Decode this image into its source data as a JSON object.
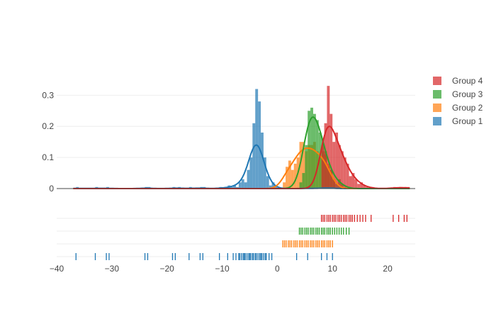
{
  "chart_data": {
    "type": "distplot",
    "title": "",
    "xlabel": "",
    "ylabel": "",
    "xlim": [
      -40,
      25
    ],
    "ylim": [
      0,
      0.36
    ],
    "x_ticks": [
      "−40",
      "−30",
      "−20",
      "−10",
      "0",
      "10",
      "20"
    ],
    "x_tick_values": [
      -40,
      -30,
      -20,
      -10,
      0,
      10,
      20
    ],
    "y_ticks": [
      "0",
      "0.1",
      "0.2",
      "0.3"
    ],
    "y_tick_values": [
      0,
      0.1,
      0.2,
      0.3
    ],
    "grid": true,
    "legend_position": "top-right",
    "series": [
      {
        "name": "Group 1",
        "color": "#1f77b4",
        "kde_peak_x": -4,
        "kde_peak_y": 0.14,
        "histogram": [
          {
            "x": -36.5,
            "y": 0.005
          },
          {
            "x": -33,
            "y": 0.005
          },
          {
            "x": -31,
            "y": 0.005
          },
          {
            "x": -24,
            "y": 0.005
          },
          {
            "x": -23.5,
            "y": 0.005
          },
          {
            "x": -19,
            "y": 0.005
          },
          {
            "x": -18,
            "y": 0.005
          },
          {
            "x": -16,
            "y": 0.005
          },
          {
            "x": -14,
            "y": 0.005
          },
          {
            "x": -13.5,
            "y": 0.005
          },
          {
            "x": -10.5,
            "y": 0.005
          },
          {
            "x": -9,
            "y": 0.01
          },
          {
            "x": -8.5,
            "y": 0.005
          },
          {
            "x": -8,
            "y": 0.01
          },
          {
            "x": -7.5,
            "y": 0.005
          },
          {
            "x": -7,
            "y": 0.02
          },
          {
            "x": -6.5,
            "y": 0.03
          },
          {
            "x": -6,
            "y": 0.02
          },
          {
            "x": -5.5,
            "y": 0.06
          },
          {
            "x": -5,
            "y": 0.1
          },
          {
            "x": -4.5,
            "y": 0.21
          },
          {
            "x": -4,
            "y": 0.32
          },
          {
            "x": -3.5,
            "y": 0.28
          },
          {
            "x": -3,
            "y": 0.18
          },
          {
            "x": -2.5,
            "y": 0.1
          },
          {
            "x": -2,
            "y": 0.04
          },
          {
            "x": -1.5,
            "y": 0.01
          },
          {
            "x": -1,
            "y": 0.02
          },
          {
            "x": -0.5,
            "y": 0.005
          },
          {
            "x": 5.5,
            "y": 0.005
          },
          {
            "x": 8,
            "y": 0.005
          },
          {
            "x": 9,
            "y": 0.005
          },
          {
            "x": 10,
            "y": 0.005
          }
        ],
        "rug": [
          -36.5,
          -33,
          -31,
          -30.5,
          -24,
          -23.5,
          -19,
          -18.5,
          -16,
          -14,
          -13.5,
          -10.5,
          -9,
          -8,
          -7.5,
          -7,
          -6.8,
          -6.5,
          -6.2,
          -6,
          -5.8,
          -5.5,
          -5.2,
          -5,
          -4.8,
          -4.5,
          -4.3,
          -4,
          -3.8,
          -3.5,
          -3.2,
          -3,
          -2.8,
          -2.5,
          -2.2,
          -2,
          -1.5,
          -1,
          3.5,
          5.5,
          8,
          9,
          10
        ]
      },
      {
        "name": "Group 2",
        "color": "#ff7f0e",
        "kde_peak_x": 6,
        "kde_peak_y": 0.13,
        "histogram": [
          {
            "x": 1,
            "y": 0.02
          },
          {
            "x": 1.5,
            "y": 0.07
          },
          {
            "x": 2,
            "y": 0.09
          },
          {
            "x": 2.5,
            "y": 0.06
          },
          {
            "x": 3,
            "y": 0.08
          },
          {
            "x": 3.5,
            "y": 0.1
          },
          {
            "x": 4,
            "y": 0.15
          },
          {
            "x": 4.5,
            "y": 0.15
          },
          {
            "x": 5,
            "y": 0.12
          },
          {
            "x": 5.5,
            "y": 0.14
          },
          {
            "x": 6,
            "y": 0.14
          },
          {
            "x": 6.5,
            "y": 0.15
          },
          {
            "x": 7,
            "y": 0.12
          },
          {
            "x": 7.5,
            "y": 0.1
          },
          {
            "x": 8,
            "y": 0.12
          },
          {
            "x": 8.5,
            "y": 0.11
          },
          {
            "x": 9,
            "y": 0.08
          },
          {
            "x": 9.5,
            "y": 0.06
          },
          {
            "x": 10,
            "y": 0.03
          }
        ],
        "rug": [
          1,
          1.3,
          1.6,
          2,
          2.3,
          2.6,
          3,
          3.3,
          3.6,
          4,
          4.3,
          4.6,
          5,
          5.3,
          5.6,
          6,
          6.3,
          6.6,
          7,
          7.3,
          7.6,
          8,
          8.3,
          8.6,
          9,
          9.3,
          9.6,
          10
        ]
      },
      {
        "name": "Group 3",
        "color": "#2ca02c",
        "kde_peak_x": 6,
        "kde_peak_y": 0.23,
        "histogram": [
          {
            "x": 4,
            "y": 0.02
          },
          {
            "x": 4.5,
            "y": 0.05
          },
          {
            "x": 5,
            "y": 0.14
          },
          {
            "x": 5.5,
            "y": 0.25
          },
          {
            "x": 6,
            "y": 0.26
          },
          {
            "x": 6.5,
            "y": 0.24
          },
          {
            "x": 7,
            "y": 0.22
          },
          {
            "x": 7.5,
            "y": 0.18
          },
          {
            "x": 8,
            "y": 0.16
          },
          {
            "x": 8.5,
            "y": 0.12
          },
          {
            "x": 9,
            "y": 0.07
          },
          {
            "x": 9.5,
            "y": 0.06
          },
          {
            "x": 10,
            "y": 0.03
          },
          {
            "x": 10.5,
            "y": 0.015
          },
          {
            "x": 11,
            "y": 0.03
          },
          {
            "x": 11.5,
            "y": 0.015
          },
          {
            "x": 12,
            "y": 0.005
          }
        ],
        "rug": [
          4,
          4.3,
          4.6,
          5,
          5.3,
          5.6,
          6,
          6.3,
          6.6,
          7,
          7.3,
          7.6,
          8,
          8.3,
          8.6,
          9,
          9.3,
          9.6,
          10,
          10.4,
          10.8,
          11.2,
          11.6,
          12,
          12.5,
          13
        ]
      },
      {
        "name": "Group 4",
        "color": "#d62728",
        "kde_peak_x": 9,
        "kde_peak_y": 0.2,
        "histogram": [
          {
            "x": 8,
            "y": 0.14
          },
          {
            "x": 8.5,
            "y": 0.21
          },
          {
            "x": 9,
            "y": 0.33
          },
          {
            "x": 9.5,
            "y": 0.24
          },
          {
            "x": 10,
            "y": 0.15
          },
          {
            "x": 10.5,
            "y": 0.18
          },
          {
            "x": 11,
            "y": 0.14
          },
          {
            "x": 11.5,
            "y": 0.12
          },
          {
            "x": 12,
            "y": 0.1
          },
          {
            "x": 12.5,
            "y": 0.08
          },
          {
            "x": 13,
            "y": 0.04
          },
          {
            "x": 13.5,
            "y": 0.05
          },
          {
            "x": 14,
            "y": 0.03
          },
          {
            "x": 14.5,
            "y": 0.015
          },
          {
            "x": 15,
            "y": 0.02
          },
          {
            "x": 15.5,
            "y": 0.01
          },
          {
            "x": 16,
            "y": 0.005
          },
          {
            "x": 17,
            "y": 0.005
          },
          {
            "x": 21,
            "y": 0.005
          },
          {
            "x": 22,
            "y": 0.005
          },
          {
            "x": 23,
            "y": 0.005
          },
          {
            "x": 23.5,
            "y": 0.005
          }
        ],
        "rug": [
          8,
          8.3,
          8.6,
          9,
          9.3,
          9.6,
          10,
          10.3,
          10.6,
          11,
          11.3,
          11.6,
          12,
          12.3,
          12.6,
          13,
          13.3,
          13.6,
          14,
          14.5,
          15,
          15.5,
          16,
          17,
          21,
          22,
          23,
          23.5
        ]
      }
    ]
  }
}
